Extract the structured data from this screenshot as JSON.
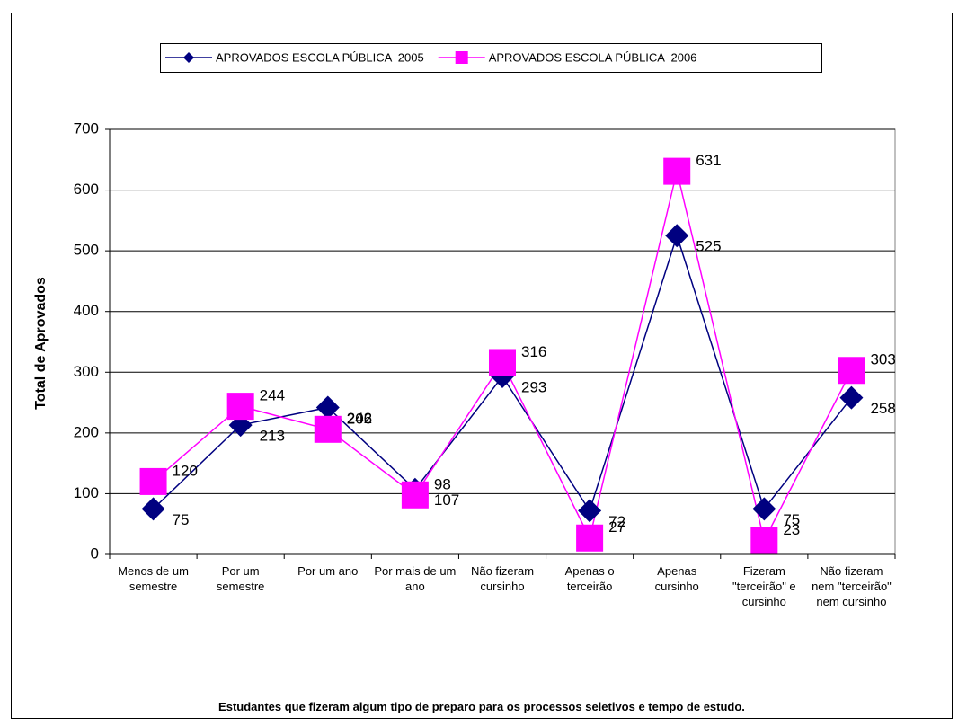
{
  "chart_data": {
    "type": "line",
    "x_label": "Estudantes que fizeram algum tipo de preparo para os processos seletivos e tempo de estudo.",
    "y_label": "Total de Aprovados",
    "categories": [
      "Menos de um semestre",
      "Por um semestre",
      "Por um ano",
      "Por mais de um ano",
      "Não fizeram cursinho",
      "Apenas o terceirão",
      "Apenas cursinho",
      "Fizeram \"terceirão\" e cursinho",
      "Não fizeram nem \"terceirão\" nem cursinho"
    ],
    "series": [
      {
        "name": "APROVADOS ESCOLA PÚBLICA  2005",
        "color": "#000080",
        "marker": "diamond",
        "values": [
          75,
          213,
          242,
          107,
          293,
          72,
          525,
          75,
          258
        ]
      },
      {
        "name": "APROVADOS ESCOLA PÚBLICA  2006",
        "color": "#FF00FF",
        "marker": "square",
        "values": [
          120,
          244,
          206,
          98,
          316,
          27,
          631,
          23,
          303
        ]
      }
    ],
    "ylim": [
      0,
      700
    ],
    "yticks": [
      0,
      100,
      200,
      300,
      400,
      500,
      600,
      700
    ],
    "grid": true,
    "legend": "top"
  }
}
